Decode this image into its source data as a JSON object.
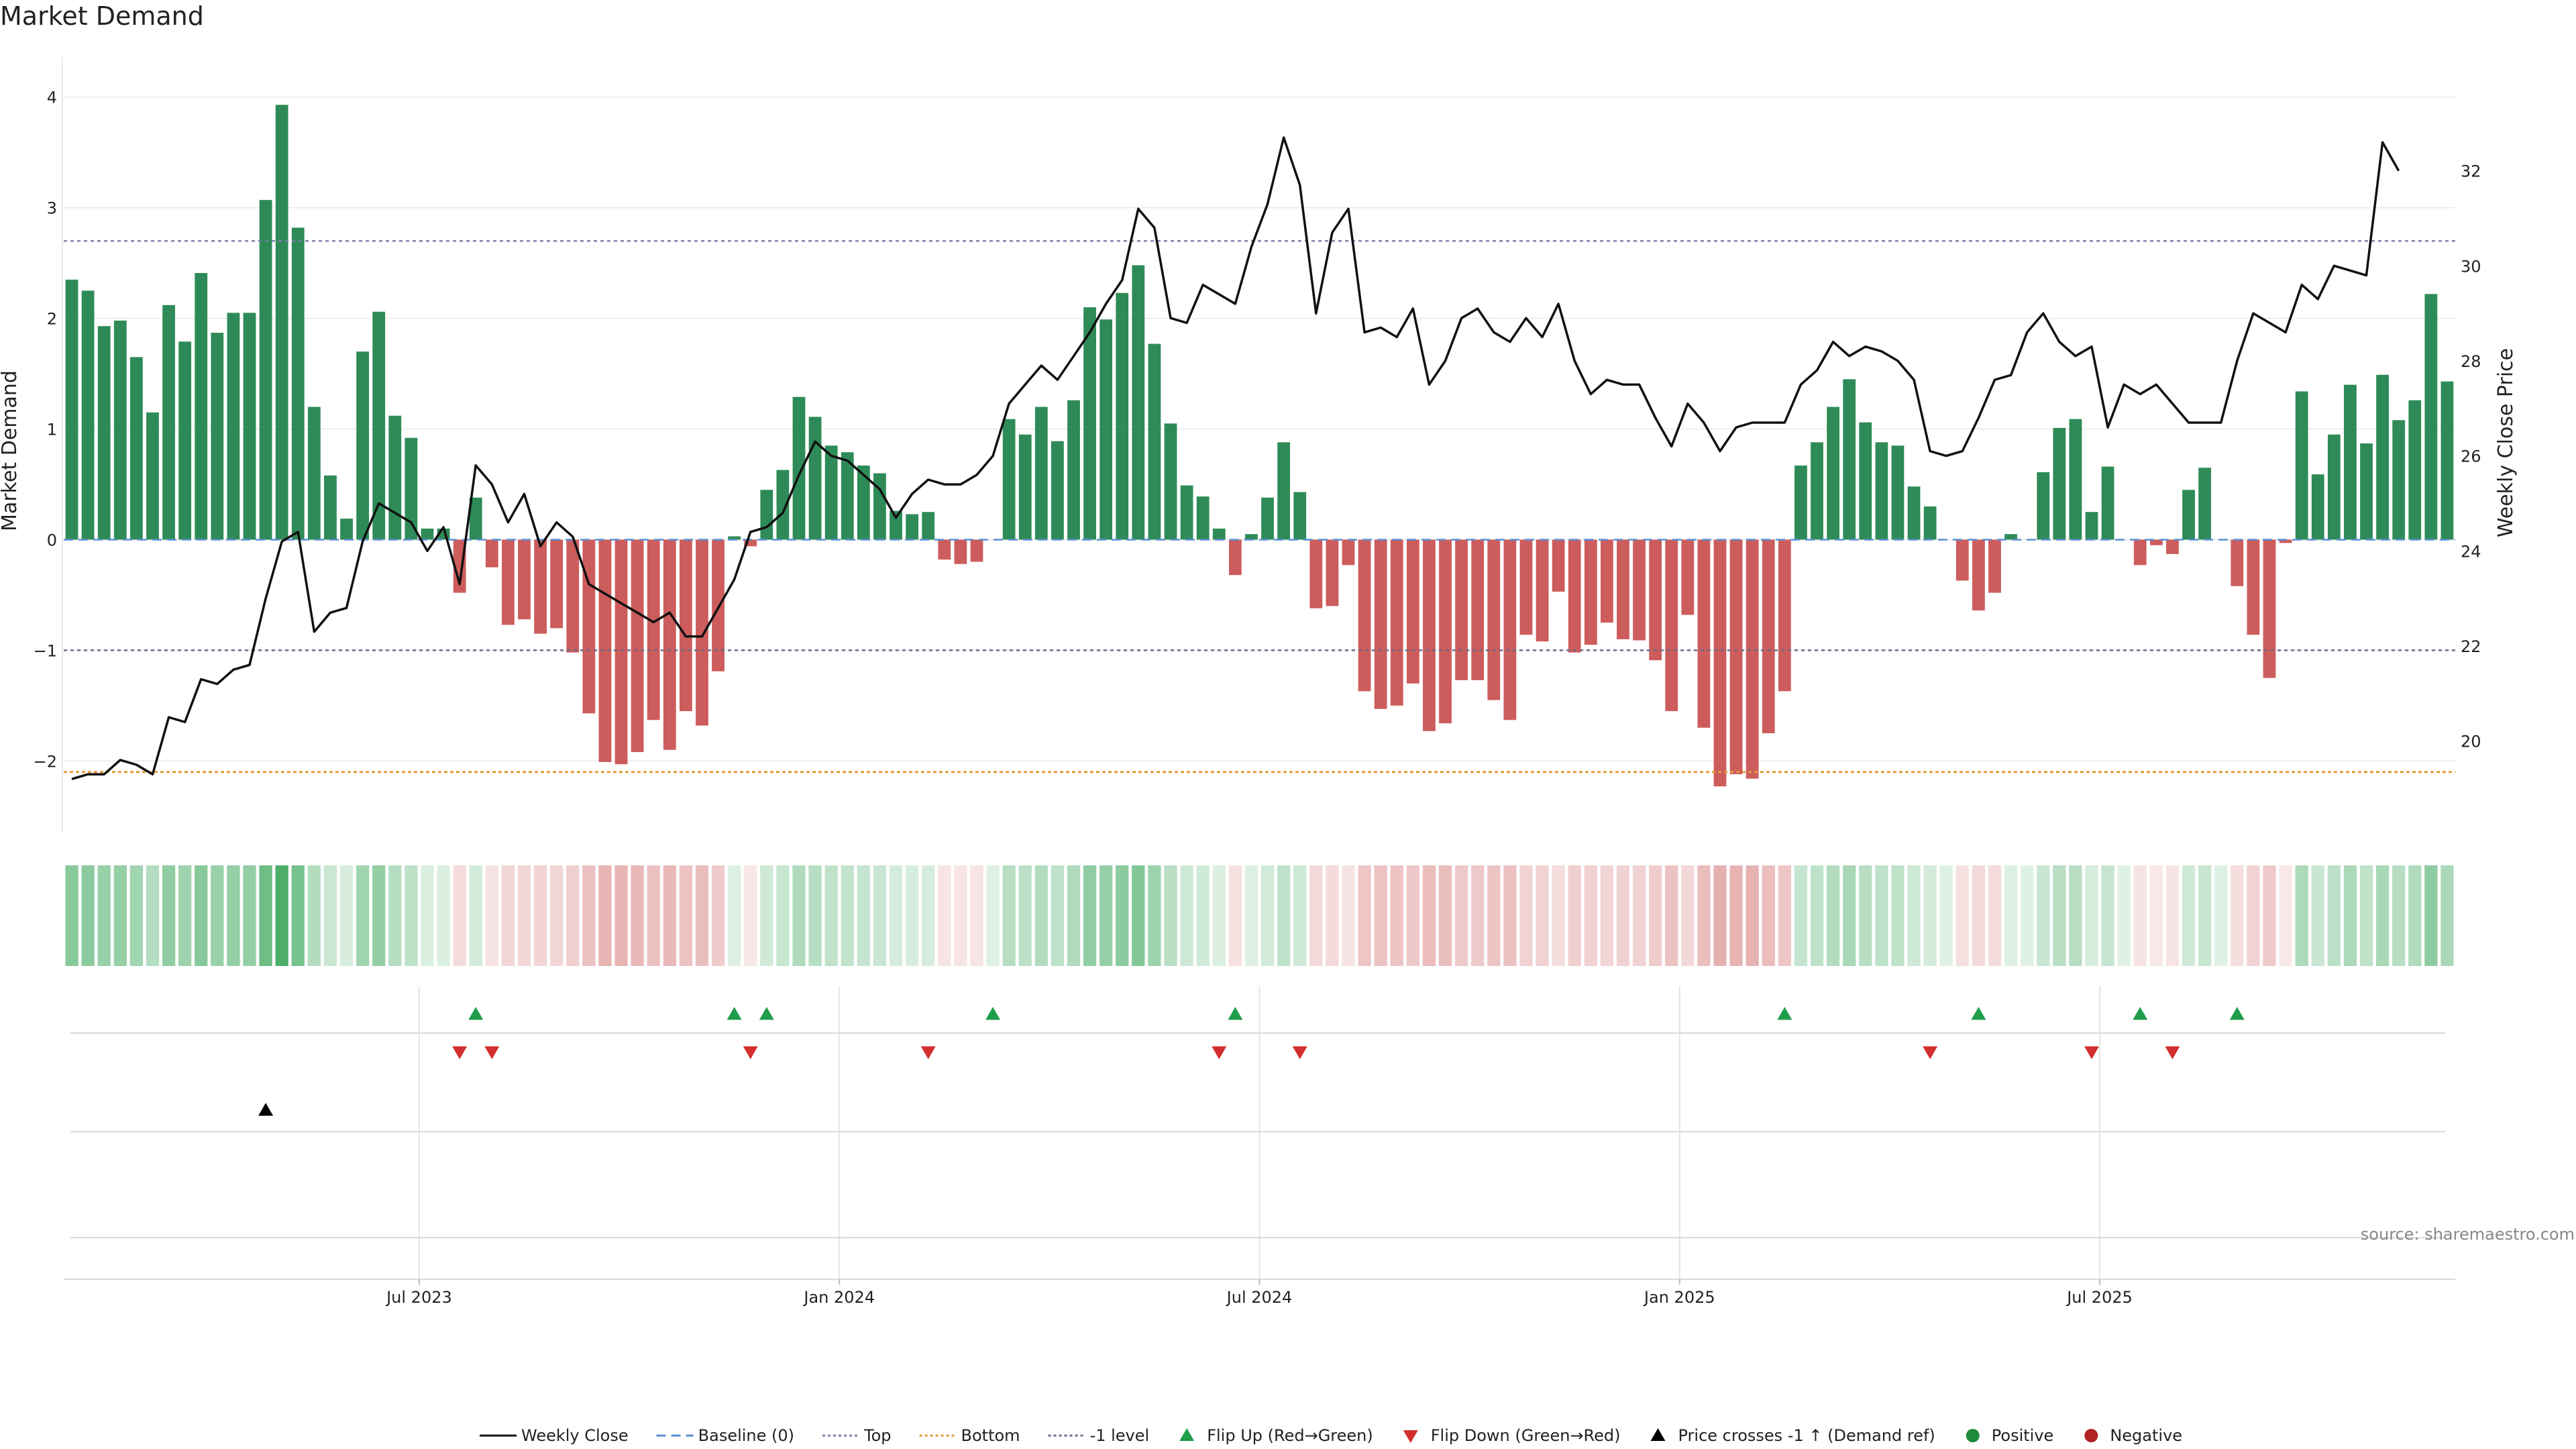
{
  "title": "Market Demand",
  "source": "source: sharemaestro.com",
  "colors": {
    "positive": "#2e8b57",
    "negative": "#cd5c5c",
    "line": "#111111",
    "top": "#7b7fa8",
    "bottom": "#e59b3a",
    "level": "#6a6a8a",
    "baseline": "#5b8fd6",
    "flip_up": "#1e9e4a",
    "flip_down": "#d32f2f",
    "neg_dot": "#b22222"
  },
  "chart_data": {
    "type": "bar+line",
    "title": "Market Demand",
    "ylabel": "Market Demand",
    "ylabel_right": "Weekly Close Price",
    "ylim": [
      -2.55,
      4.15
    ],
    "yticks": [
      -2,
      -1,
      0,
      1,
      2,
      3,
      4
    ],
    "ylim_right": [
      18.3,
      33.9
    ],
    "yticks_right": [
      20,
      22,
      24,
      26,
      28,
      30,
      32
    ],
    "reference_lines": {
      "top": 2.7,
      "bottom": -2.1,
      "minus_one": -1.0,
      "baseline": 0
    },
    "x_tick_labels": [
      {
        "index": 22,
        "label": "Jul 2023"
      },
      {
        "index": 48,
        "label": "Jan 2024"
      },
      {
        "index": 74,
        "label": "Jul 2024"
      },
      {
        "index": 100,
        "label": "Jan 2025"
      },
      {
        "index": 126,
        "label": "Jul 2025"
      }
    ],
    "demand": [
      2.35,
      2.25,
      1.93,
      1.98,
      1.65,
      1.15,
      2.12,
      1.79,
      2.41,
      1.87,
      2.05,
      2.05,
      3.07,
      3.93,
      2.82,
      1.2,
      0.58,
      0.19,
      1.7,
      2.06,
      1.12,
      0.92,
      0.1,
      0.1,
      -0.48,
      0.38,
      -0.25,
      -0.77,
      -0.72,
      -0.85,
      -0.8,
      -1.02,
      -1.57,
      -2.01,
      -2.03,
      -1.92,
      -1.63,
      -1.9,
      -1.55,
      -1.68,
      -1.19,
      0.03,
      -0.06,
      0.45,
      0.63,
      1.29,
      1.11,
      0.85,
      0.79,
      0.67,
      0.6,
      0.26,
      0.23,
      0.25,
      -0.18,
      -0.22,
      -0.2,
      0.0,
      1.09,
      0.95,
      1.2,
      0.89,
      1.26,
      2.1,
      1.99,
      2.23,
      2.48,
      1.77,
      1.05,
      0.49,
      0.39,
      0.1,
      -0.32,
      0.05,
      0.38,
      0.88,
      0.43,
      -0.62,
      -0.6,
      -0.23,
      -1.37,
      -1.53,
      -1.5,
      -1.3,
      -1.73,
      -1.66,
      -1.27,
      -1.27,
      -1.45,
      -1.63,
      -0.86,
      -0.92,
      -0.47,
      -1.02,
      -0.95,
      -0.75,
      -0.9,
      -0.91,
      -1.09,
      -1.55,
      -0.68,
      -1.7,
      -2.23,
      -2.12,
      -2.16,
      -1.75,
      -1.37,
      0.67,
      0.88,
      1.2,
      1.45,
      1.06,
      0.88,
      0.85,
      0.48,
      0.3,
      0.0,
      -0.37,
      -0.64,
      -0.48,
      0.05,
      0.0,
      0.61,
      1.01,
      1.09,
      0.25,
      0.66,
      0.0,
      -0.23,
      -0.05,
      -0.13,
      0.45,
      0.65,
      0.0,
      -0.42,
      -0.86,
      -1.25,
      -0.03,
      1.34,
      0.59,
      0.95,
      1.4,
      0.87,
      1.49,
      1.08,
      1.26,
      2.22,
      1.43
    ],
    "price": [
      19.2,
      19.3,
      19.3,
      19.6,
      19.5,
      19.3,
      20.5,
      20.4,
      21.3,
      21.2,
      21.5,
      21.6,
      23.0,
      24.2,
      24.4,
      22.3,
      22.7,
      22.8,
      24.2,
      25.0,
      24.8,
      24.6,
      24.0,
      24.5,
      23.3,
      25.8,
      25.4,
      24.6,
      25.2,
      24.1,
      24.6,
      24.3,
      23.3,
      23.1,
      22.9,
      22.7,
      22.5,
      22.7,
      22.2,
      22.2,
      22.8,
      23.4,
      24.4,
      24.5,
      24.8,
      25.6,
      26.3,
      26.0,
      25.9,
      25.6,
      25.3,
      24.7,
      25.2,
      25.5,
      25.4,
      25.4,
      25.6,
      26.0,
      27.1,
      27.5,
      27.9,
      27.6,
      28.1,
      28.6,
      29.2,
      29.7,
      31.2,
      30.8,
      28.9,
      28.8,
      29.6,
      29.4,
      29.2,
      30.4,
      31.3,
      32.7,
      31.7,
      29.0,
      30.7,
      31.2,
      28.6,
      28.7,
      28.5,
      29.1,
      27.5,
      28.0,
      28.9,
      29.1,
      28.6,
      28.4,
      28.9,
      28.5,
      29.2,
      28.0,
      27.3,
      27.6,
      27.5,
      27.5,
      26.8,
      26.2,
      27.1,
      26.7,
      26.1,
      26.6,
      26.7,
      26.7,
      26.7,
      27.5,
      27.8,
      28.4,
      28.1,
      28.3,
      28.2,
      28.0,
      27.6,
      26.1,
      26.0,
      26.1,
      26.8,
      27.6,
      27.7,
      28.6,
      29.0,
      28.4,
      28.1,
      28.3,
      26.6,
      27.5,
      27.3,
      27.5,
      27.1,
      26.7,
      26.7,
      26.7,
      28.0,
      29.0,
      28.8,
      28.6,
      29.6,
      29.3,
      30.0,
      29.9,
      29.8,
      32.6,
      32.0
    ],
    "flip_up_indices": [
      25,
      41,
      43,
      57,
      72,
      106,
      118,
      128,
      134
    ],
    "flip_down_indices": [
      24,
      26,
      42,
      53,
      71,
      76,
      115,
      125,
      130
    ],
    "price_cross_indices": [
      12
    ]
  },
  "legend": [
    {
      "label": "Weekly Close",
      "kind": "solid-line"
    },
    {
      "label": "Baseline (0)",
      "kind": "dashed-line"
    },
    {
      "label": "Top",
      "kind": "dotted-top"
    },
    {
      "label": "Bottom",
      "kind": "dotted-bottom"
    },
    {
      "label": "-1 level",
      "kind": "dotted-level"
    },
    {
      "label": "Flip Up (Red→Green)",
      "kind": "tri-up-green"
    },
    {
      "label": "Flip Down (Green→Red)",
      "kind": "tri-down-red"
    },
    {
      "label": "Price crosses -1 ↑ (Demand ref)",
      "kind": "tri-up-black"
    },
    {
      "label": "Positive",
      "kind": "dot-green"
    },
    {
      "label": "Negative",
      "kind": "dot-red"
    }
  ]
}
